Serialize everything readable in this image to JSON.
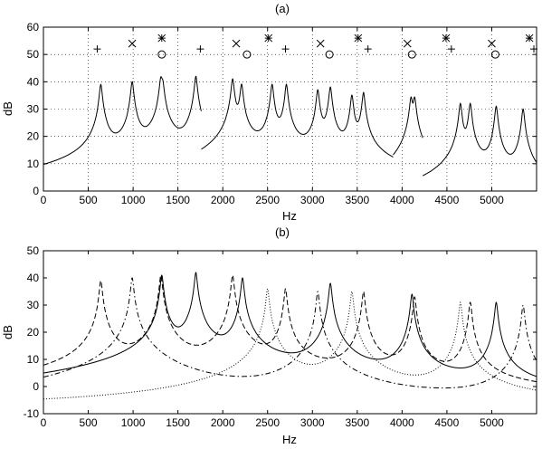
{
  "chart_data": [
    {
      "type": "line",
      "panel_label": "(a)",
      "xlabel": "Hz",
      "ylabel": "dB",
      "xlim": [
        0,
        5500
      ],
      "ylim": [
        0,
        60
      ],
      "xticks": [
        0,
        500,
        1000,
        1500,
        2000,
        2500,
        3000,
        3500,
        4000,
        4500,
        5000
      ],
      "yticks": [
        0,
        10,
        20,
        30,
        40,
        50,
        60
      ],
      "grid": true,
      "series": [
        {
          "style": "solid",
          "segments": [
            {
              "base": -6,
              "peaks": [
                {
                  "f": 640,
                  "a": 39
                },
                {
                  "f": 990,
                  "a": 40
                },
                {
                  "f": 1310,
                  "a": 41
                },
                {
                  "f": 1330,
                  "a": 39
                },
                {
                  "f": 1700,
                  "a": 42
                }
              ],
              "from": 0,
              "to": 1760
            },
            {
              "base": -6,
              "peaks": [
                {
                  "f": 2110,
                  "a": 41
                },
                {
                  "f": 2210,
                  "a": 39
                },
                {
                  "f": 2550,
                  "a": 39
                },
                {
                  "f": 2710,
                  "a": 39
                },
                {
                  "f": 3060,
                  "a": 37
                },
                {
                  "f": 3200,
                  "a": 38
                },
                {
                  "f": 3440,
                  "a": 35
                },
                {
                  "f": 3570,
                  "a": 36
                }
              ],
              "from": 1760,
              "to": 3900
            },
            {
              "base": -6,
              "peaks": [
                {
                  "f": 4100,
                  "a": 34
                },
                {
                  "f": 4140,
                  "a": 34
                }
              ],
              "from": 3900,
              "to": 4230
            },
            {
              "base": -6,
              "peaks": [
                {
                  "f": 4650,
                  "a": 32
                },
                {
                  "f": 4760,
                  "a": 32
                },
                {
                  "f": 5050,
                  "a": 31
                },
                {
                  "f": 5350,
                  "a": 30
                }
              ],
              "from": 4230,
              "to": 5500
            }
          ]
        }
      ],
      "markers": [
        {
          "symbol": "plus",
          "x": 600,
          "y": 52
        },
        {
          "symbol": "plus",
          "x": 1750,
          "y": 52
        },
        {
          "symbol": "plus",
          "x": 2700,
          "y": 52
        },
        {
          "symbol": "plus",
          "x": 3620,
          "y": 52
        },
        {
          "symbol": "plus",
          "x": 4550,
          "y": 52
        },
        {
          "symbol": "plus",
          "x": 5470,
          "y": 52
        },
        {
          "symbol": "x",
          "x": 990,
          "y": 54
        },
        {
          "symbol": "x",
          "x": 2150,
          "y": 54
        },
        {
          "symbol": "x",
          "x": 3090,
          "y": 54
        },
        {
          "symbol": "x",
          "x": 4060,
          "y": 54
        },
        {
          "symbol": "x",
          "x": 5000,
          "y": 54
        },
        {
          "symbol": "star",
          "x": 1320,
          "y": 56
        },
        {
          "symbol": "star",
          "x": 2510,
          "y": 56
        },
        {
          "symbol": "star",
          "x": 3510,
          "y": 56
        },
        {
          "symbol": "star",
          "x": 4490,
          "y": 56
        },
        {
          "symbol": "star",
          "x": 5420,
          "y": 56
        },
        {
          "symbol": "circle",
          "x": 1320,
          "y": 50
        },
        {
          "symbol": "circle",
          "x": 2270,
          "y": 50
        },
        {
          "symbol": "circle",
          "x": 3190,
          "y": 50
        },
        {
          "symbol": "circle",
          "x": 4110,
          "y": 50
        },
        {
          "symbol": "circle",
          "x": 5040,
          "y": 50
        }
      ]
    },
    {
      "type": "line",
      "panel_label": "(b)",
      "xlabel": "Hz",
      "ylabel": "dB",
      "xlim": [
        0,
        5500
      ],
      "ylim": [
        -10,
        50
      ],
      "xticks": [
        0,
        500,
        1000,
        1500,
        2000,
        2500,
        3000,
        3500,
        4000,
        4500,
        5000
      ],
      "yticks": [
        -10,
        0,
        10,
        20,
        30,
        40,
        50
      ],
      "grid": false,
      "series": [
        {
          "style": "solid",
          "base": -10,
          "peaks": [
            {
              "f": 1320,
              "a": 41
            },
            {
              "f": 1700,
              "a": 42
            },
            {
              "f": 2220,
              "a": 40
            },
            {
              "f": 3200,
              "a": 38
            },
            {
              "f": 4110,
              "a": 34
            },
            {
              "f": 5050,
              "a": 31
            }
          ]
        },
        {
          "style": "dashed",
          "base": -8,
          "peaks": [
            {
              "f": 640,
              "a": 39
            },
            {
              "f": 1310,
              "a": 41
            },
            {
              "f": 2110,
              "a": 41
            },
            {
              "f": 2700,
              "a": 36
            },
            {
              "f": 3570,
              "a": 35
            },
            {
              "f": 4140,
              "a": 33
            },
            {
              "f": 4760,
              "a": 31
            }
          ]
        },
        {
          "style": "dashdot",
          "base": -8,
          "peaks": [
            {
              "f": 990,
              "a": 40
            },
            {
              "f": 3060,
              "a": 35
            },
            {
              "f": 5350,
              "a": 30
            }
          ]
        },
        {
          "style": "dotted",
          "base": -8,
          "peaks": [
            {
              "f": 2500,
              "a": 36
            },
            {
              "f": 3440,
              "a": 35
            },
            {
              "f": 4650,
              "a": 31
            }
          ]
        }
      ]
    }
  ]
}
